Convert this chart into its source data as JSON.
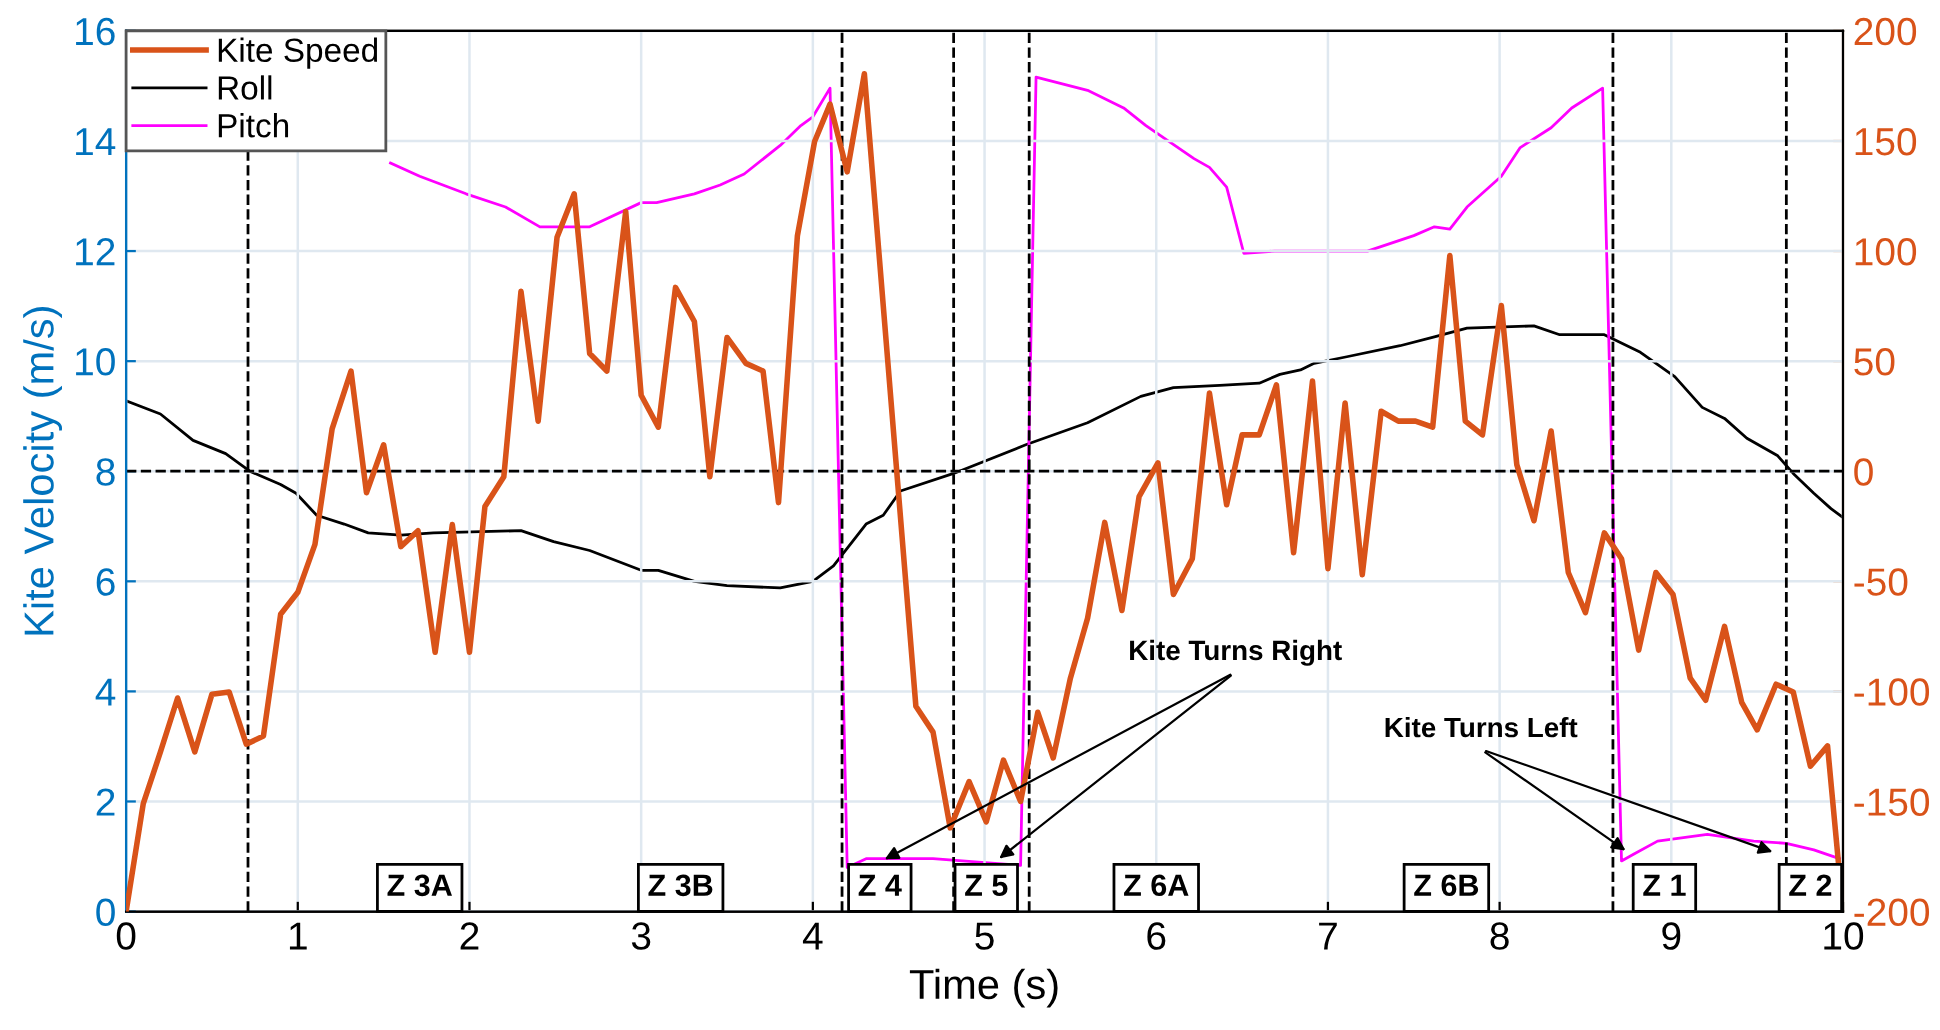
{
  "chart_data": {
    "type": "line",
    "xlabel": "Time (s)",
    "ylabel": "Kite Velocity (m/s)",
    "xlim": [
      0,
      10
    ],
    "xticks": [
      0,
      1,
      2,
      3,
      4,
      5,
      6,
      7,
      8,
      9,
      10
    ],
    "ylim": [
      0,
      16
    ],
    "yticks": [
      0,
      2,
      4,
      6,
      8,
      10,
      12,
      14,
      16
    ],
    "y2lim": [
      -200,
      200
    ],
    "y2ticks": [
      -200,
      -150,
      -100,
      -50,
      0,
      50,
      100,
      150,
      200
    ],
    "grid": true,
    "legend": "top left",
    "line_style": "solid",
    "marker": "none",
    "series": [
      {
        "name": "Kite Speed",
        "color": "#d95319",
        "x": [
          0,
          0.1,
          0.2,
          0.3,
          0.4,
          0.5,
          0.6,
          0.7,
          0.8,
          0.9,
          1.0,
          1.1,
          1.2,
          1.31,
          1.4,
          1.5,
          1.6,
          1.7,
          1.8,
          1.9,
          2.0,
          2.09,
          2.2,
          2.3,
          2.4,
          2.51,
          2.61,
          2.7,
          2.8,
          2.91,
          3.0,
          3.1,
          3.2,
          3.31,
          3.4,
          3.5,
          3.61,
          3.71,
          3.8,
          3.91,
          4.01,
          4.1,
          4.2,
          4.3,
          4.6,
          4.7,
          4.8,
          4.91,
          5.01,
          5.11,
          5.21,
          5.31,
          5.4,
          5.5,
          5.6,
          5.7,
          5.8,
          5.9,
          6.01,
          6.1,
          6.21,
          6.31,
          6.41,
          6.5,
          6.6,
          6.7,
          6.8,
          6.91,
          7.0,
          7.1,
          7.2,
          7.31,
          7.41,
          7.51,
          7.61,
          7.71,
          7.8,
          7.9,
          8.01,
          8.1,
          8.2,
          8.3,
          8.4,
          8.5,
          8.61,
          8.71,
          8.81,
          8.91,
          9.01,
          9.11,
          9.2,
          9.31,
          9.41,
          9.5,
          9.61,
          9.71,
          9.81,
          9.91,
          10
        ],
        "values": [
          0,
          1.96,
          2.9,
          3.88,
          2.9,
          3.95,
          3.99,
          3.04,
          3.19,
          5.4,
          5.8,
          6.67,
          8.77,
          9.82,
          7.61,
          8.48,
          6.63,
          6.92,
          4.71,
          7.03,
          4.71,
          7.36,
          7.9,
          11.27,
          8.91,
          12.25,
          13.04,
          10.14,
          9.82,
          12.72,
          9.38,
          8.8,
          11.34,
          10.72,
          7.9,
          10.43,
          9.96,
          9.82,
          7.43,
          12.28,
          13.99,
          14.67,
          13.44,
          15.22,
          3.73,
          3.26,
          1.52,
          2.36,
          1.63,
          2.75,
          2.0,
          3.62,
          2.79,
          4.24,
          5.33,
          7.07,
          5.47,
          7.54,
          8.15,
          5.76,
          6.41,
          9.42,
          7.39,
          8.66,
          8.66,
          9.57,
          6.52,
          9.64,
          6.23,
          9.24,
          6.12,
          9.09,
          8.91,
          8.91,
          8.8,
          11.92,
          8.91,
          8.66,
          11.01,
          8.12,
          7.1,
          8.73,
          6.16,
          5.43,
          6.88,
          6.41,
          4.75,
          6.16,
          5.76,
          4.24,
          3.84,
          5.18,
          3.8,
          3.3,
          4.13,
          3.99,
          2.64,
          3.01,
          0
        ]
      },
      {
        "name": "Roll",
        "color": "#000000",
        "axis": "y2",
        "x": [
          0,
          0.2,
          0.39,
          0.58,
          0.72,
          0.9,
          0.99,
          1.11,
          1.27,
          1.41,
          1.6,
          1.79,
          2.3,
          2.49,
          2.7,
          3.0,
          3.1,
          3.31,
          3.5,
          3.81,
          4.0,
          4.12,
          4.31,
          4.41,
          4.51,
          4.82,
          5.24,
          5.6,
          5.91,
          6.1,
          6.37,
          6.6,
          6.72,
          6.84,
          6.92,
          7.11,
          7.42,
          7.62,
          7.81,
          8.2,
          8.35,
          8.61,
          8.82,
          9.02,
          9.18,
          9.31,
          9.44,
          9.62,
          9.71,
          9.83,
          9.93,
          10.0
        ],
        "values": [
          32,
          26,
          14,
          8,
          0,
          -6,
          -10,
          -20,
          -24,
          -28,
          -29,
          -28,
          -27,
          -32,
          -36,
          -45,
          -45,
          -50,
          -52,
          -53,
          -50,
          -43,
          -24,
          -20,
          -9,
          -1,
          12,
          22,
          34,
          38,
          39,
          40,
          44,
          46,
          49,
          52,
          57,
          61,
          65,
          66,
          62,
          62,
          54,
          43,
          29,
          24,
          15,
          7,
          -1,
          -10,
          -17,
          -21
        ]
      },
      {
        "name": "Pitch",
        "color": "#ff00ff",
        "axis": "y2",
        "x": [
          1.54,
          1.71,
          1.98,
          2.21,
          2.41,
          2.7,
          3.0,
          3.09,
          3.31,
          3.46,
          3.6,
          3.81,
          3.93,
          4.0,
          4.1,
          4.2,
          4.31,
          4.7,
          5.21,
          5.3,
          5.6,
          5.81,
          5.94,
          6.22,
          6.31,
          6.41,
          6.51,
          6.69,
          7.23,
          7.5,
          7.62,
          7.71,
          7.81,
          8.01,
          8.12,
          8.3,
          8.42,
          8.6,
          8.71,
          8.78,
          8.92,
          9.21,
          9.48,
          9.67,
          9.83,
          9.98
        ],
        "values": [
          140,
          134,
          126,
          120,
          111,
          111,
          122,
          122,
          126,
          130,
          135,
          148,
          157,
          161,
          174,
          -180,
          -176,
          -176,
          -179,
          179,
          173,
          165,
          157,
          142,
          138,
          129,
          99,
          100,
          100,
          107,
          111,
          110,
          120,
          134,
          147,
          156,
          165,
          174,
          -177,
          -174,
          -168,
          -165,
          -168,
          -169,
          -172,
          -176
        ]
      }
    ],
    "ref_lines": [
      {
        "axis": "y",
        "value": 8,
        "color": "#000000",
        "line_style": "dashed"
      },
      {
        "axis": "x",
        "value": 0.71,
        "color": "#000000",
        "line_style": "dashed"
      },
      {
        "axis": "x",
        "value": 4.17,
        "color": "#000000",
        "line_style": "dashed"
      },
      {
        "axis": "x",
        "value": 4.82,
        "color": "#000000",
        "line_style": "dashed"
      },
      {
        "axis": "x",
        "value": 5.26,
        "color": "#000000",
        "line_style": "dashed"
      },
      {
        "axis": "x",
        "value": 8.66,
        "color": "#000000",
        "line_style": "dashed"
      },
      {
        "axis": "x",
        "value": 9.67,
        "color": "#000000",
        "line_style": "dashed"
      }
    ],
    "annotations": [
      {
        "text": "Z 3A",
        "x": 1.71,
        "y": 0.43
      },
      {
        "text": "Z 3B",
        "x": 3.23,
        "y": 0.43
      },
      {
        "text": "Z 4",
        "x": 4.39,
        "y": 0.43
      },
      {
        "text": "Z 5",
        "x": 5.01,
        "y": 0.43
      },
      {
        "text": "Z 6A",
        "x": 6.0,
        "y": 0.43
      },
      {
        "text": "Z 6B",
        "x": 7.69,
        "y": 0.43
      },
      {
        "text": "Z 1",
        "x": 8.96,
        "y": 0.43
      },
      {
        "text": "Z 2",
        "x": 9.81,
        "y": 0.43
      },
      {
        "text": "Kite Turns Right",
        "x": 4.39,
        "y": 0.9
      },
      {
        "text": "Kite Turns Left",
        "x": 8.76,
        "y": 1.05
      }
    ]
  }
}
